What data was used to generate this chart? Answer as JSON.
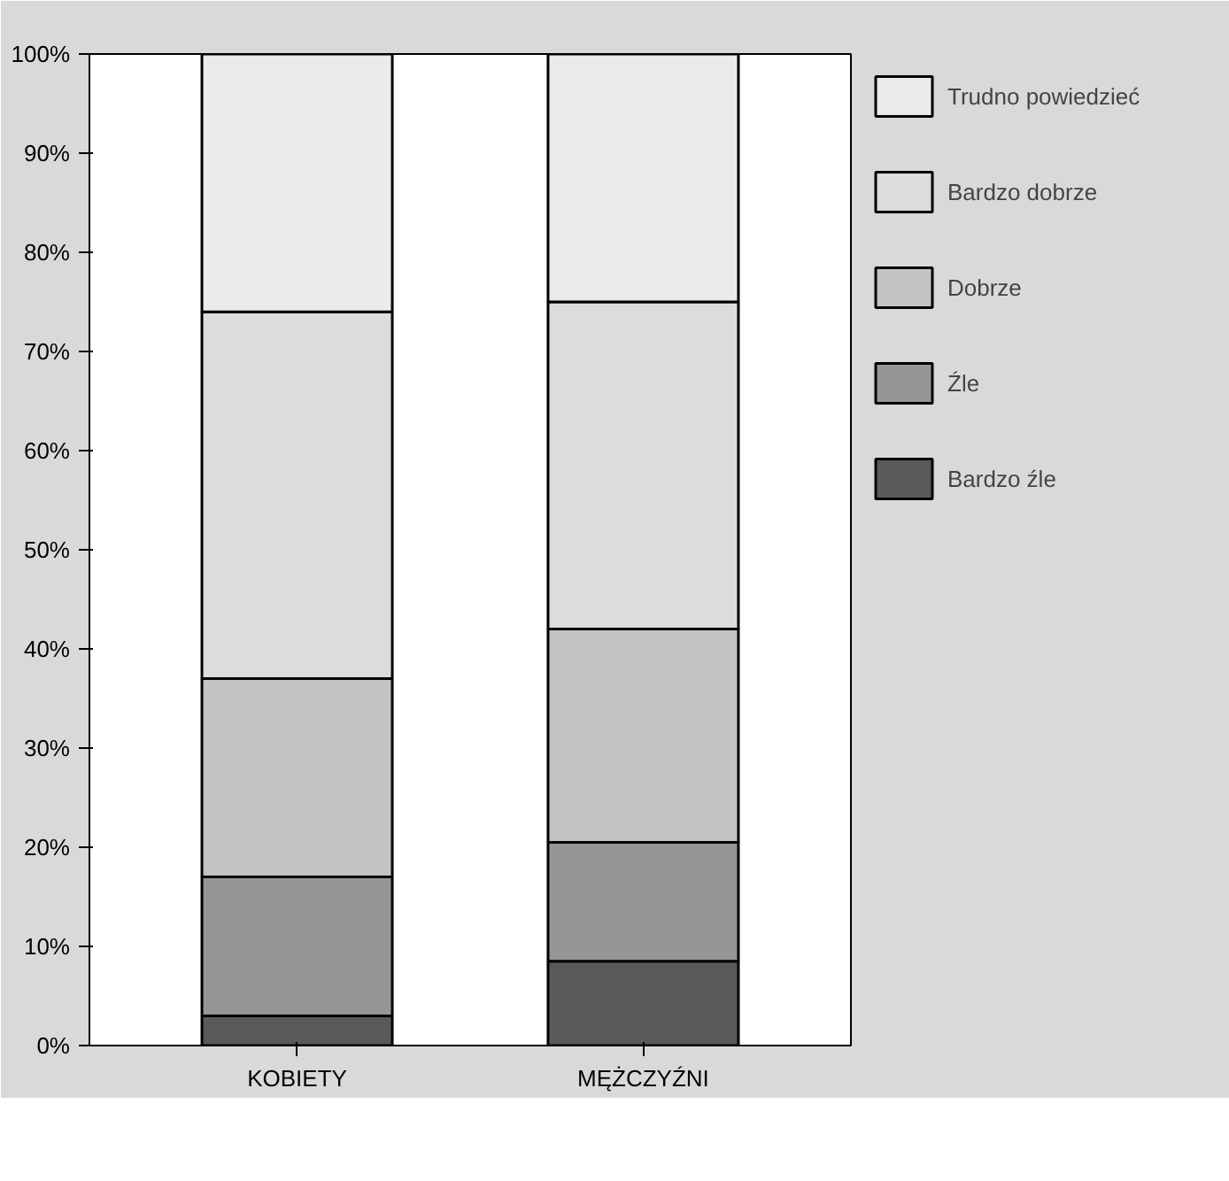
{
  "chart_data": {
    "type": "bar",
    "stacked": true,
    "categories": [
      "KOBIETY",
      "MĘŻCZYŹNI"
    ],
    "series": [
      {
        "name": "Bardzo źle",
        "color": "#5a5a5a",
        "values": [
          3,
          8.5
        ]
      },
      {
        "name": "Źle",
        "color": "#969696",
        "values": [
          14,
          12
        ]
      },
      {
        "name": "Dobrze",
        "color": "#c3c3c3",
        "values": [
          20,
          21.5
        ]
      },
      {
        "name": "Bardzo dobrze",
        "color": "#dcdcdc",
        "values": [
          37,
          33
        ]
      },
      {
        "name": "Trudno powiedzieć",
        "color": "#ebebeb",
        "values": [
          26,
          25
        ]
      }
    ],
    "ylim": [
      0,
      100
    ],
    "yticks": [
      {
        "value": 0,
        "label": "0%"
      },
      {
        "value": 10,
        "label": "10%"
      },
      {
        "value": 20,
        "label": "20%"
      },
      {
        "value": 30,
        "label": "30%"
      },
      {
        "value": 40,
        "label": "40%"
      },
      {
        "value": 50,
        "label": "50%"
      },
      {
        "value": 60,
        "label": "60%"
      },
      {
        "value": 70,
        "label": "70%"
      },
      {
        "value": 80,
        "label": "80%"
      },
      {
        "value": 90,
        "label": "90%"
      },
      {
        "value": 100,
        "label": "100%"
      }
    ],
    "grid": false,
    "legend": "right"
  }
}
